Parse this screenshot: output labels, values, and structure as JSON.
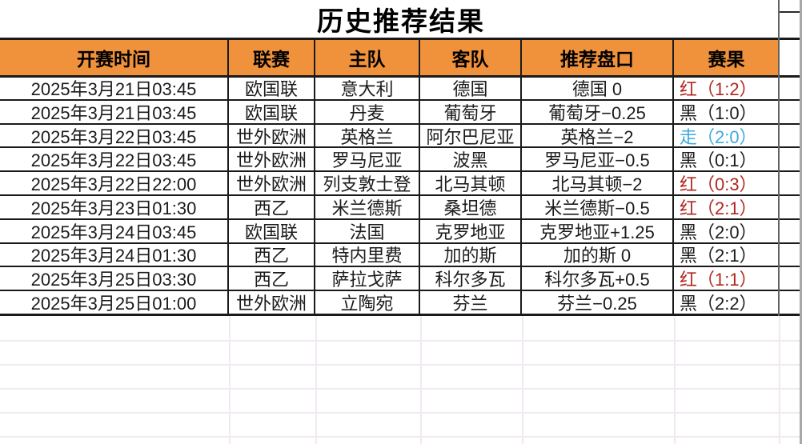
{
  "title": "历史推荐结果",
  "colors": {
    "header_bg": "#f0913c",
    "result_red": "#b1261f",
    "result_black": "#1b1b1b",
    "result_push_blue": "#3fa9dc"
  },
  "table": {
    "columns": [
      {
        "key": "time",
        "label": "开赛时间"
      },
      {
        "key": "league",
        "label": "联赛"
      },
      {
        "key": "home",
        "label": "主队"
      },
      {
        "key": "away",
        "label": "客队"
      },
      {
        "key": "handicap",
        "label": "推荐盘口"
      },
      {
        "key": "result",
        "label": "赛果"
      }
    ],
    "rows": [
      {
        "time": "2025年3月21日03:45",
        "league": "欧国联",
        "home": "意大利",
        "away": "德国",
        "handicap": "德国 0",
        "result": "红（1:2）",
        "result_type": "red"
      },
      {
        "time": "2025年3月21日03:45",
        "league": "欧国联",
        "home": "丹麦",
        "away": "葡萄牙",
        "handicap": "葡萄牙−0.25",
        "result": "黑（1:0）",
        "result_type": "black"
      },
      {
        "time": "2025年3月22日03:45",
        "league": "世外欧洲",
        "home": "英格兰",
        "away": "阿尔巴尼亚",
        "handicap": "英格兰−2",
        "result": "走（2:0）",
        "result_type": "push"
      },
      {
        "time": "2025年3月22日03:45",
        "league": "世外欧洲",
        "home": "罗马尼亚",
        "away": "波黑",
        "handicap": "罗马尼亚−0.5",
        "result": "黑（0:1）",
        "result_type": "black"
      },
      {
        "time": "2025年3月22日22:00",
        "league": "世外欧洲",
        "home": "列支敦士登",
        "away": "北马其顿",
        "handicap": "北马其顿−2",
        "result": "红（0:3）",
        "result_type": "red"
      },
      {
        "time": "2025年3月23日01:30",
        "league": "西乙",
        "home": "米兰德斯",
        "away": "桑坦德",
        "handicap": "米兰德斯−0.5",
        "result": "红（2:1）",
        "result_type": "red"
      },
      {
        "time": "2025年3月24日03:45",
        "league": "欧国联",
        "home": "法国",
        "away": "克罗地亚",
        "handicap": "克罗地亚+1.25",
        "result": "黑（2:0）",
        "result_type": "black"
      },
      {
        "time": "2025年3月24日01:30",
        "league": "西乙",
        "home": "特内里费",
        "away": "加的斯",
        "handicap": "加的斯 0",
        "result": "黑（2:1）",
        "result_type": "black"
      },
      {
        "time": "2025年3月25日03:30",
        "league": "西乙",
        "home": "萨拉戈萨",
        "away": "科尔多瓦",
        "handicap": "科尔多瓦+0.5",
        "result": "红（1:1）",
        "result_type": "red"
      },
      {
        "time": "2025年3月25日01:00",
        "league": "世外欧洲",
        "home": "立陶宛",
        "away": "芬兰",
        "handicap": "芬兰−0.25",
        "result": "黑（2:2）",
        "result_type": "black"
      }
    ]
  }
}
